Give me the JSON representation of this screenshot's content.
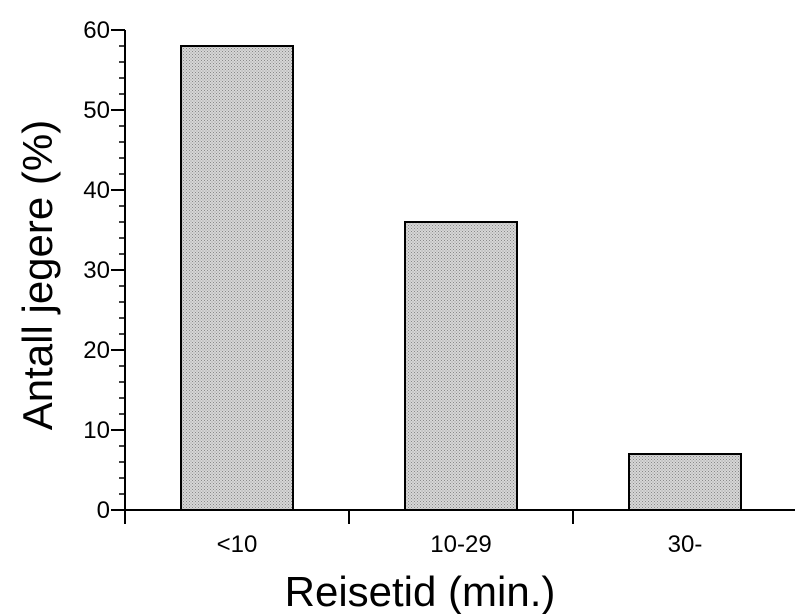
{
  "chart_data": {
    "type": "bar",
    "categories": [
      "<10",
      "10-29",
      "30-"
    ],
    "values": [
      58,
      36,
      7
    ],
    "xlabel": "Reisetid (min.)",
    "ylabel": "Antall jegere (%)",
    "ylim": [
      0,
      60
    ],
    "yticks": [
      0,
      10,
      20,
      30,
      40,
      50,
      60
    ],
    "grid": false,
    "bar_color": "#c4c4c4"
  }
}
